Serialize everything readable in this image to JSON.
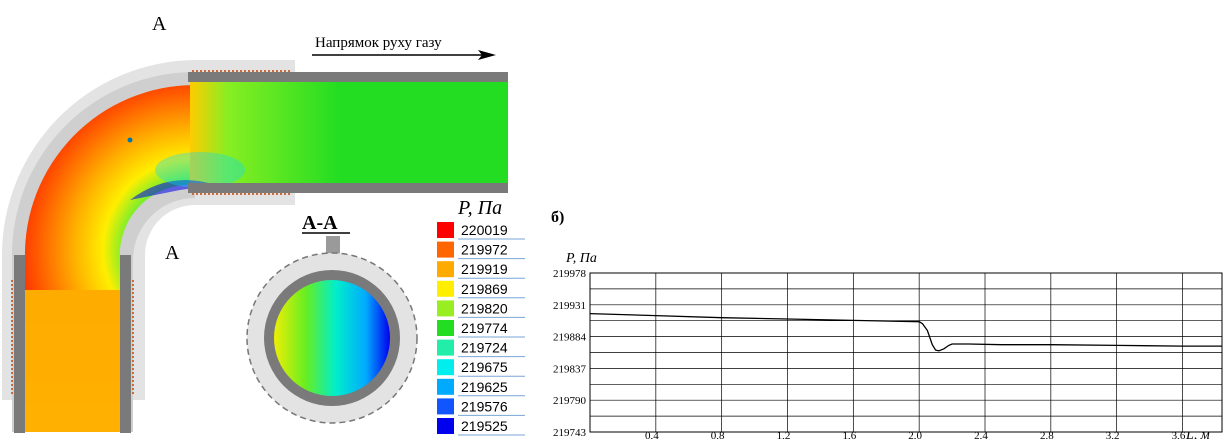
{
  "pipe_figure": {
    "label_a_top": "А",
    "label_a_bottom": "А",
    "flow_direction": "Напрямок руху газу",
    "section_label": "А-А"
  },
  "legend": {
    "title": "P, Па",
    "items": [
      {
        "value": "220019",
        "color": "#ff0000"
      },
      {
        "value": "219972",
        "color": "#ff6600"
      },
      {
        "value": "219919",
        "color": "#ffaa00"
      },
      {
        "value": "219869",
        "color": "#ffee00"
      },
      {
        "value": "219820",
        "color": "#99ee22"
      },
      {
        "value": "219774",
        "color": "#22dd22"
      },
      {
        "value": "219724",
        "color": "#22eeaa"
      },
      {
        "value": "219675",
        "color": "#00eeee"
      },
      {
        "value": "219625",
        "color": "#00aaff"
      },
      {
        "value": "219576",
        "color": "#1155ff"
      },
      {
        "value": "219525",
        "color": "#0000ee"
      }
    ]
  },
  "panel_b_label": "б)",
  "chart_data": {
    "type": "line",
    "ylabel": "P, Па",
    "xlabel": "L, м",
    "ylim": [
      219743,
      219978
    ],
    "xlim": [
      0,
      3.84
    ],
    "yticks": [
      "219978",
      "219931",
      "219884",
      "219837",
      "219790",
      "219743"
    ],
    "xticks": [
      "0,4",
      "0,8",
      "1,2",
      "1,6",
      "2,0",
      "2,4",
      "2,8",
      "3,2",
      "3,6"
    ],
    "grid": true,
    "series": [
      {
        "x": [
          0,
          0.4,
          0.8,
          1.2,
          1.6,
          2.0,
          2.02,
          2.05,
          2.08,
          2.1,
          2.12,
          2.15,
          2.18,
          2.2,
          2.25,
          2.3,
          2.5,
          2.8,
          3.2,
          3.6,
          3.84
        ],
        "y": [
          219918,
          219915,
          219912,
          219910,
          219908,
          219906,
          219903,
          219893,
          219872,
          219864,
          219863,
          219866,
          219871,
          219873,
          219873,
          219873,
          219872,
          219872,
          219871,
          219870,
          219870
        ]
      }
    ]
  }
}
